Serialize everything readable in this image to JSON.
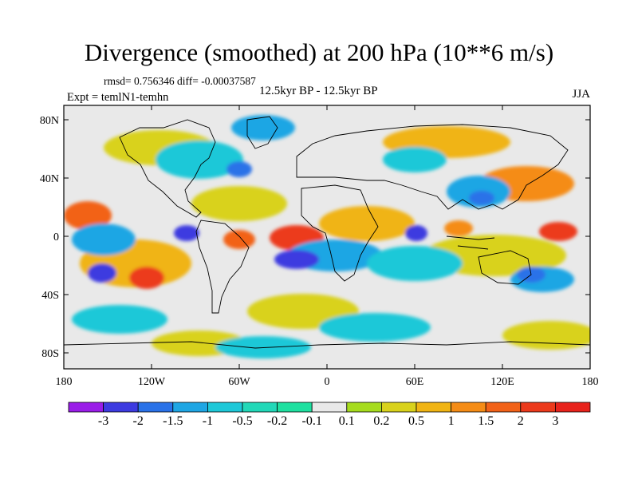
{
  "title": "Divergence (smoothed) at 200 hPa (10**6 m/s)",
  "stats": "rmsd= 0.756346 diff= -0.00037587",
  "period": "12.5kyr BP - 12.5kyr BP",
  "experiment": "Expt = temlN1-temhn",
  "season": "JJA",
  "lat_ticks": [
    "80N",
    "40N",
    "0",
    "40S",
    "80S"
  ],
  "lon_ticks": [
    "180",
    "120W",
    "60W",
    "0",
    "60E",
    "120E",
    "180"
  ],
  "colorbar": {
    "labels": [
      "-3",
      "-2",
      "-1.5",
      "-1",
      "-0.5",
      "-0.2",
      "-0.1",
      "0.1",
      "0.2",
      "0.5",
      "1",
      "1.5",
      "2",
      "3"
    ],
    "colors": [
      "#9a1de8",
      "#3d3be0",
      "#2a72e8",
      "#1fa6e4",
      "#1ec8d8",
      "#22d8b8",
      "#1fe0a0",
      "#e9e9e9",
      "#a6dc1e",
      "#d9d21c",
      "#f0b414",
      "#f58c16",
      "#f26218",
      "#ec3a1c",
      "#e8231c"
    ]
  },
  "colors": {
    "background": "#e9e9e9",
    "coast": "#000000"
  }
}
